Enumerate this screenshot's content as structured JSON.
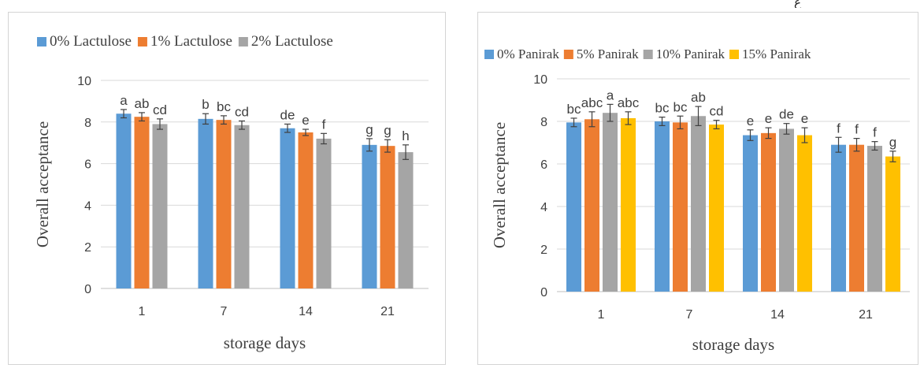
{
  "corner_glyph": "ع",
  "colors": {
    "blue": "#5b9bd5",
    "orange": "#ed7d31",
    "gray": "#a5a5a5",
    "yellow": "#ffc000",
    "grid": "#d9d9d9",
    "axis": "#595959"
  },
  "chart_data": [
    {
      "type": "bar",
      "categories": [
        "1",
        "7",
        "14",
        "21"
      ],
      "xlabel": "storage days",
      "ylabel": "Overall acceptance",
      "ylim": [
        0,
        10
      ],
      "yticks": [
        0,
        2,
        4,
        6,
        8,
        10
      ],
      "grid": true,
      "legend_position": "top",
      "series": [
        {
          "name": "0% Lactulose",
          "color": "#5b9bd5",
          "values": [
            8.4,
            8.15,
            7.7,
            6.9
          ],
          "errors": [
            0.2,
            0.25,
            0.2,
            0.3
          ],
          "labels": [
            "a",
            "b",
            "de",
            "g"
          ]
        },
        {
          "name": "1% Lactulose",
          "color": "#ed7d31",
          "values": [
            8.25,
            8.1,
            7.5,
            6.85
          ],
          "errors": [
            0.2,
            0.2,
            0.15,
            0.3
          ],
          "labels": [
            "ab",
            "bc",
            "e",
            "g"
          ]
        },
        {
          "name": "2% Lactulose",
          "color": "#a5a5a5",
          "values": [
            7.9,
            7.85,
            7.2,
            6.55
          ],
          "errors": [
            0.25,
            0.2,
            0.25,
            0.35
          ],
          "labels": [
            "cd",
            "cd",
            "f",
            "h"
          ]
        }
      ]
    },
    {
      "type": "bar",
      "categories": [
        "1",
        "7",
        "14",
        "21"
      ],
      "xlabel": "storage days",
      "ylabel": "Overall acceptance",
      "ylim": [
        0,
        10
      ],
      "yticks": [
        0,
        2,
        4,
        6,
        8,
        10
      ],
      "grid": true,
      "legend_position": "top",
      "series": [
        {
          "name": "0% Panirak",
          "color": "#5b9bd5",
          "values": [
            7.95,
            8.0,
            7.35,
            6.9
          ],
          "errors": [
            0.2,
            0.2,
            0.25,
            0.35
          ],
          "labels": [
            "bc",
            "bc",
            "e",
            "f"
          ]
        },
        {
          "name": "5% Panirak",
          "color": "#ed7d31",
          "values": [
            8.1,
            7.95,
            7.45,
            6.9
          ],
          "errors": [
            0.35,
            0.3,
            0.25,
            0.3
          ],
          "labels": [
            "abc",
            "bc",
            "e",
            "f"
          ]
        },
        {
          "name": "10% Panirak",
          "color": "#a5a5a5",
          "values": [
            8.4,
            8.25,
            7.65,
            6.85
          ],
          "errors": [
            0.4,
            0.45,
            0.25,
            0.2
          ],
          "labels": [
            "a",
            "ab",
            "de",
            "f"
          ]
        },
        {
          "name": "15% Panirak",
          "color": "#ffc000",
          "values": [
            8.15,
            7.85,
            7.35,
            6.35
          ],
          "errors": [
            0.3,
            0.2,
            0.35,
            0.25
          ],
          "labels": [
            "abc",
            "cd",
            "e",
            "g"
          ]
        }
      ]
    }
  ]
}
